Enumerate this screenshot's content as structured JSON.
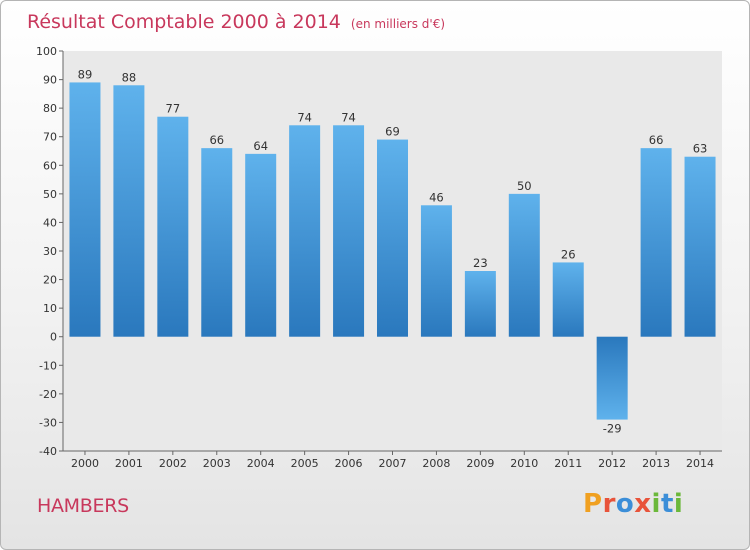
{
  "header": {
    "title": "Résultat Comptable 2000 à 2014",
    "unit": "(en milliers d'€)"
  },
  "footer": {
    "commune": "HAMBERS",
    "logo": "Proxiti"
  },
  "colors": {
    "title": "#c8385c",
    "bar_light": "#5fb2ec",
    "bar_dark": "#2a78bd",
    "plot_bg": "#e9e9e9"
  },
  "chart_data": {
    "type": "bar",
    "title": "Résultat Comptable 2000 à 2014",
    "subtitle": "(en milliers d'€)",
    "categories": [
      "2000",
      "2001",
      "2002",
      "2003",
      "2004",
      "2005",
      "2006",
      "2007",
      "2008",
      "2009",
      "2010",
      "2011",
      "2012",
      "2013",
      "2014"
    ],
    "values": [
      89,
      88,
      77,
      66,
      64,
      74,
      74,
      69,
      46,
      23,
      50,
      26,
      -29,
      66,
      63
    ],
    "ylim": [
      -40,
      100
    ],
    "yticks": [
      100,
      90,
      80,
      70,
      60,
      50,
      40,
      30,
      20,
      10,
      0,
      -10,
      -20,
      -30,
      -40
    ],
    "grid": false,
    "legend": "none"
  }
}
